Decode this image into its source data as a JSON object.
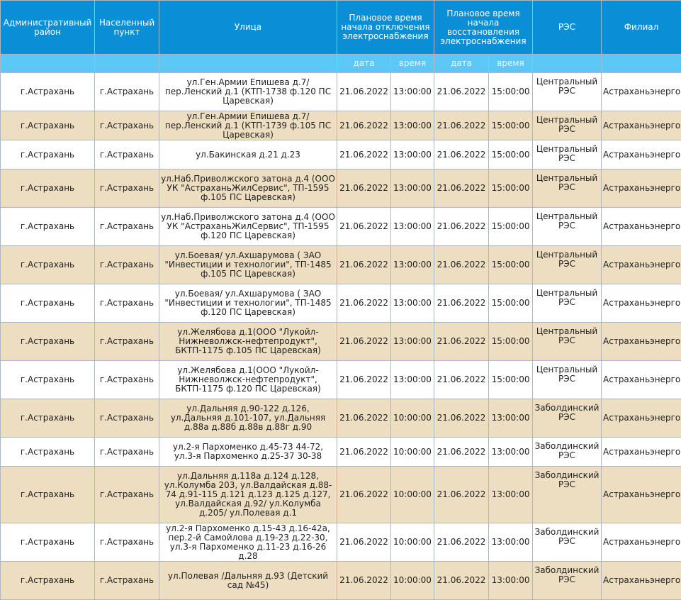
{
  "headers": {
    "district": "Административный район",
    "locality": "Населенный пункт",
    "street": "Улица",
    "off_time": "Плановое время начала отключения электроснабжения",
    "on_time": "Плановое время начала восстановления электроснабжения",
    "res": "РЭС",
    "branch": "Филиал",
    "date": "дата",
    "time": "время"
  },
  "rows": [
    {
      "district": "г.Астрахань",
      "locality": "г.Астрахань",
      "street": "ул.Ген.Армии Епишева д.7/ пер.Ленский д.1 (КТП-1738 ф.120 ПС Царевская)",
      "off_date": "21.06.2022",
      "off_time": "13:00:00",
      "on_date": "21.06.2022",
      "on_time": "15:00:00",
      "res": "Центральный РЭС",
      "branch": "Астраханьэнерго"
    },
    {
      "district": "г.Астрахань",
      "locality": "г.Астрахань",
      "street": "ул.Ген.Армии Епишева д.7/пер.Ленский д.1 (КТП-1739 ф.105 ПС Царевская)",
      "off_date": "21.06.2022",
      "off_time": "13:00:00",
      "on_date": "21.06.2022",
      "on_time": "15:00:00",
      "res": "Центральный РЭС",
      "branch": "Астраханьэнерго"
    },
    {
      "district": "г.Астрахань",
      "locality": "г.Астрахань",
      "street": "ул.Бакинская д.21 д.23",
      "off_date": "21.06.2022",
      "off_time": "13:00:00",
      "on_date": "21.06.2022",
      "on_time": "15:00:00",
      "res": "Центральный РЭС",
      "branch": "Астраханьэнерго"
    },
    {
      "district": "г.Астрахань",
      "locality": "г.Астрахань",
      "street": "ул.Наб.Приволжского затона д.4 (ООО УК \"АстраханьЖилСервис\", ТП-1595 ф.105 ПС Царевская)",
      "off_date": "21.06.2022",
      "off_time": "13:00:00",
      "on_date": "21.06.2022",
      "on_time": "15:00:00",
      "res": "Центральный РЭС",
      "branch": "Астраханьэнерго"
    },
    {
      "district": "г.Астрахань",
      "locality": "г.Астрахань",
      "street": "ул.Наб.Приволжского затона д.4 (ООО УК \"АстраханьЖилСервис\", ТП-1595 ф.120 ПС Царевская)",
      "off_date": "21.06.2022",
      "off_time": "13:00:00",
      "on_date": "21.06.2022",
      "on_time": "15:00:00",
      "res": "Центральный РЭС",
      "branch": "Астраханьэнерго"
    },
    {
      "district": "г.Астрахань",
      "locality": "г.Астрахань",
      "street": "ул.Боевая/ ул.Ахшарумова ( ЗАО \"Инвестиции и технологии\", ТП-1485 ф.105 ПС Царевская)",
      "off_date": "21.06.2022",
      "off_time": "13:00:00",
      "on_date": "21.06.2022",
      "on_time": "15:00:00",
      "res": "Центральный РЭС",
      "branch": "Астраханьэнерго"
    },
    {
      "district": "г.Астрахань",
      "locality": "г.Астрахань",
      "street": "ул.Боевая/ ул.Ахшарумова ( ЗАО \"Инвестиции и технологии\", ТП-1485 ф.120 ПС Царевская)",
      "off_date": "21.06.2022",
      "off_time": "13:00:00",
      "on_date": "21.06.2022",
      "on_time": "15:00:00",
      "res": "Центральный РЭС",
      "branch": "Астраханьэнерго"
    },
    {
      "district": "г.Астрахань",
      "locality": "г.Астрахань",
      "street": "ул.Желябова д.1(ООО \"Лукойл-Нижневолжск-нефтепродукт\", БКТП-1175 ф.105 ПС Царевская)",
      "off_date": "21.06.2022",
      "off_time": "13:00:00",
      "on_date": "21.06.2022",
      "on_time": "15:00:00",
      "res": "Центральный РЭС",
      "branch": "Астраханьэнерго"
    },
    {
      "district": "г.Астрахань",
      "locality": "г.Астрахань",
      "street": "ул.Желябова д.1(ООО \"Лукойл-Нижневолжск-нефтепродукт\", БКТП-1175 ф.120 ПС Царевская)",
      "off_date": "21.06.2022",
      "off_time": "13:00:00",
      "on_date": "21.06.2022",
      "on_time": "15:00:00",
      "res": "Центральный РЭС",
      "branch": "Астраханьэнерго"
    },
    {
      "district": "г.Астрахань",
      "locality": "г.Астрахань",
      "street": "ул.Дальняя д.90-122 д.126, ул.Дальняя д.101-107, ул.Дальняя д.88а д.88б д.88в д.88г д.90",
      "off_date": "21.06.2022",
      "off_time": "10:00:00",
      "on_date": "21.06.2022",
      "on_time": "13:00:00",
      "res": "Заболдинский РЭС",
      "branch": "Астраханьэнерго"
    },
    {
      "district": "г.Астрахань",
      "locality": "г.Астрахань",
      "street": "ул.2-я Пархоменко д.45-73 44-72, ул.3-я Пархоменко д.25-37 30-38",
      "off_date": "21.06.2022",
      "off_time": "10:00:00",
      "on_date": "21.06.2022",
      "on_time": "13:00:00",
      "res": "Заболдинский РЭС",
      "branch": "Астраханьэнерго"
    },
    {
      "district": "г.Астрахань",
      "locality": "г.Астрахань",
      "street": "ул.Дальняя д.118а д.124 д.128, ул.Колумба 203, ул.Валдайская д.88-74 д.91-115 д.121 д.123 д.125 д.127, ул.Валдайская д.92/ ул.Колумба д.205/ ул.Полевая д.1",
      "off_date": "21.06.2022",
      "off_time": "10:00:00",
      "on_date": "21.06.2022",
      "on_time": "13:00:00",
      "res": "Заболдинский РЭС",
      "branch": "Астраханьэнерго"
    },
    {
      "district": "г.Астрахань",
      "locality": "г.Астрахань",
      "street": "ул.2-я Пархоменко д.15-43 д.16-42а, пер.2-й Самойлова д.19-23 д.22-30, ул.3-я Пархоменко д.11-23 д.16-26 д.28",
      "off_date": "21.06.2022",
      "off_time": "10:00:00",
      "on_date": "21.06.2022",
      "on_time": "13:00:00",
      "res": "Заболдинский РЭС",
      "branch": "Астраханьэнерго"
    },
    {
      "district": "г.Астрахань",
      "locality": "г.Астрахань",
      "street": "ул.Полевая /Дальняя д.93 (Детский сад №45)",
      "off_date": "21.06.2022",
      "off_time": "10:00:00",
      "on_date": "21.06.2022",
      "on_time": "13:00:00",
      "res": "Заболдинский РЭС",
      "branch": "Астраханьэнерго"
    }
  ]
}
